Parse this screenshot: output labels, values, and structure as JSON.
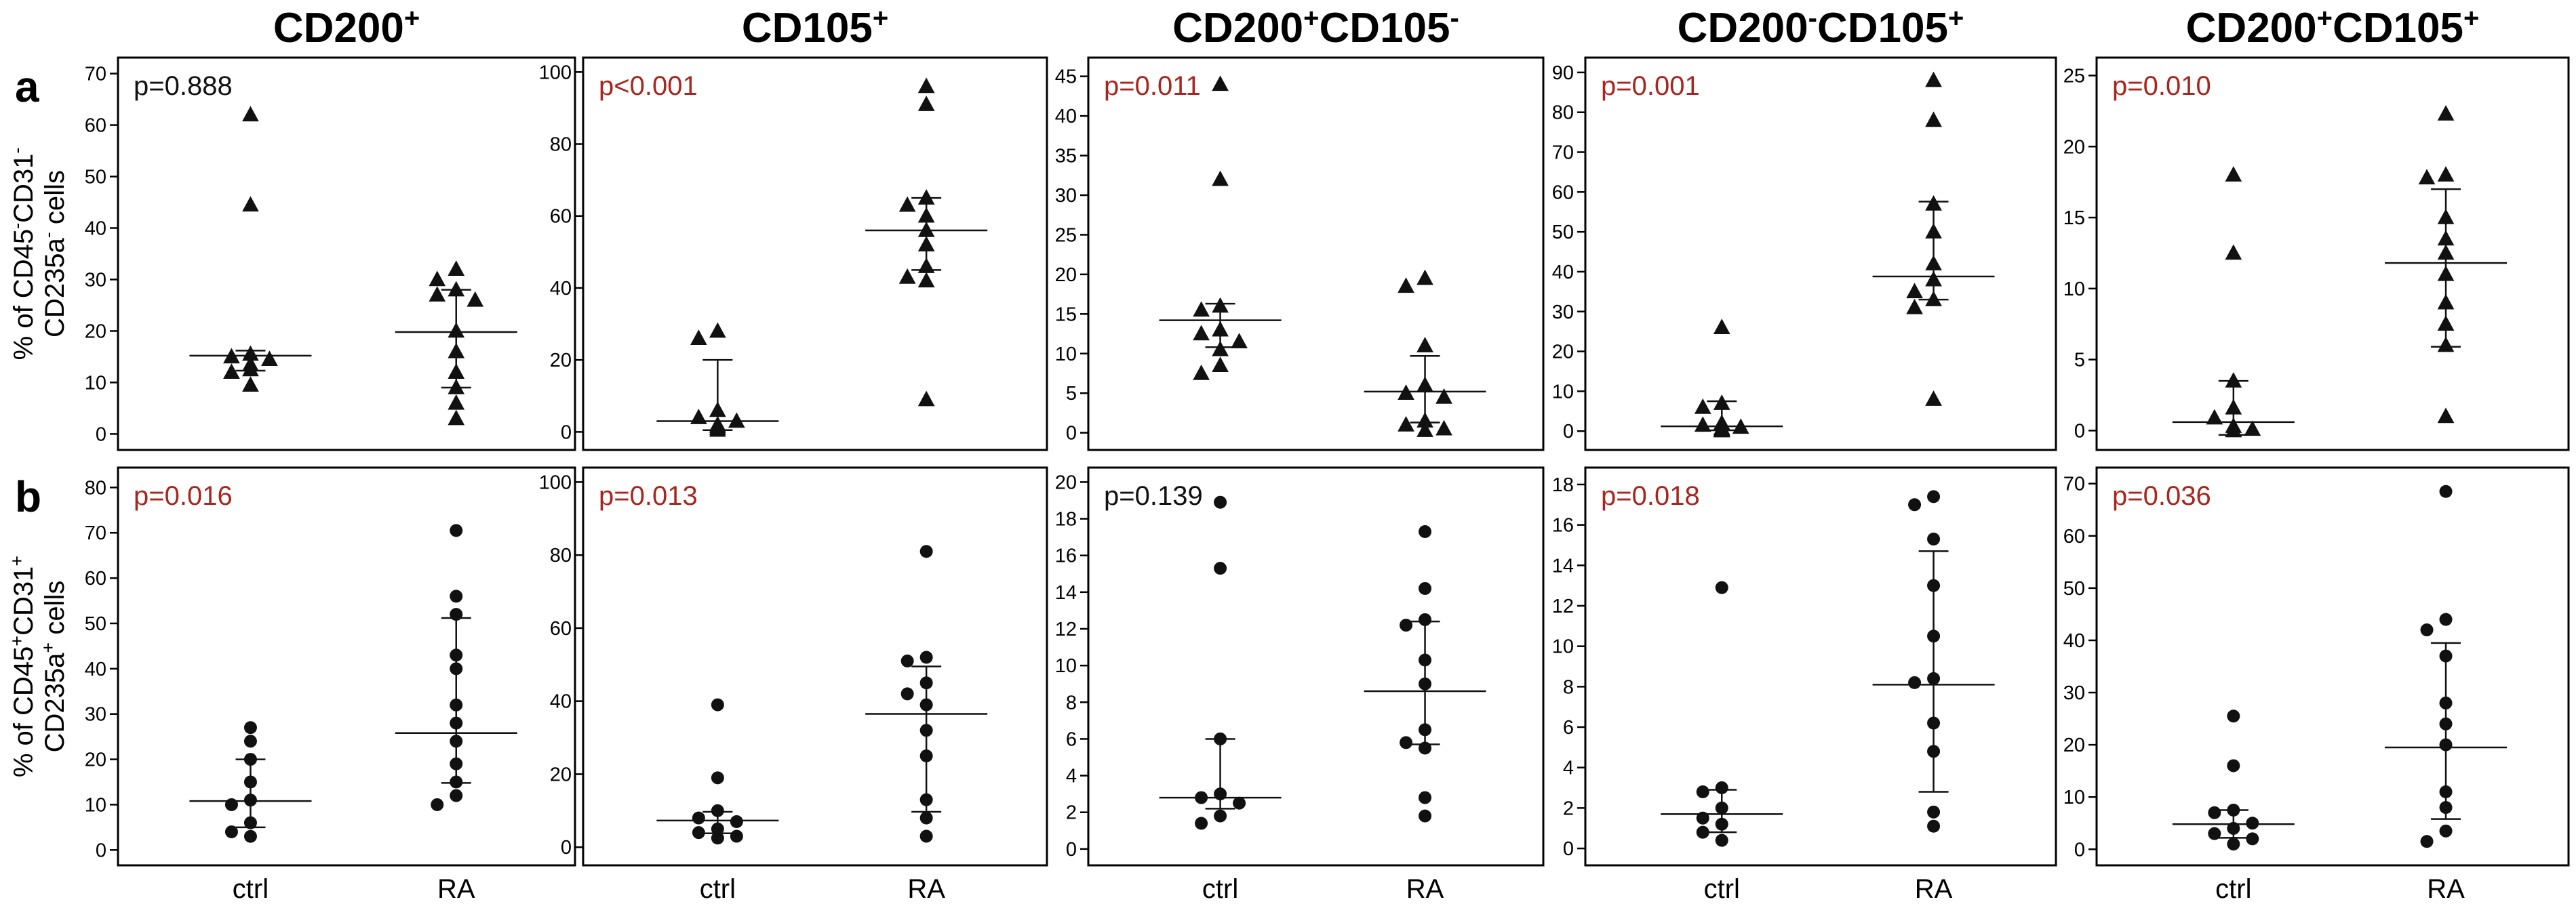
{
  "figure": {
    "column_titles": [
      [
        {
          "t": "CD200",
          "s": false
        },
        {
          "t": "+",
          "s": true
        }
      ],
      [
        {
          "t": "CD105",
          "s": false
        },
        {
          "t": "+",
          "s": true
        }
      ],
      [
        {
          "t": "CD200",
          "s": false
        },
        {
          "t": "+",
          "s": true
        },
        {
          "t": "CD105",
          "s": false
        },
        {
          "t": "-",
          "s": true
        }
      ],
      [
        {
          "t": "CD200",
          "s": false
        },
        {
          "t": "-",
          "s": true
        },
        {
          "t": "CD105",
          "s": false
        },
        {
          "t": "+",
          "s": true
        }
      ],
      [
        {
          "t": "CD200",
          "s": false
        },
        {
          "t": "+",
          "s": true
        },
        {
          "t": "CD105",
          "s": false
        },
        {
          "t": "+",
          "s": true
        }
      ]
    ],
    "rows": [
      {
        "label": "a",
        "ylabel_lines": [
          [
            {
              "t": "% of CD45",
              "s": false
            },
            {
              "t": "-",
              "s": true
            },
            {
              "t": "CD31",
              "s": false
            },
            {
              "t": "-",
              "s": true
            }
          ],
          [
            {
              "t": "CD235a",
              "s": false
            },
            {
              "t": "-",
              "s": true
            },
            {
              "t": " cells",
              "s": false
            }
          ]
        ],
        "marker": "triangle"
      },
      {
        "label": "b",
        "ylabel_lines": [
          [
            {
              "t": "% of CD45",
              "s": false
            },
            {
              "t": "+",
              "s": true
            },
            {
              "t": "CD31",
              "s": false
            },
            {
              "t": "+",
              "s": true
            }
          ],
          [
            {
              "t": "CD235a",
              "s": false
            },
            {
              "t": "+",
              "s": true
            },
            {
              "t": " cells",
              "s": false
            }
          ]
        ],
        "marker": "circle"
      }
    ],
    "x_categories": [
      "ctrl",
      "RA"
    ],
    "colors": {
      "significant": "#a8261e",
      "nonsignificant": "#111111",
      "axis": "#000000"
    }
  },
  "chart_data": [
    {
      "type": "scatter",
      "row": "a",
      "col": 0,
      "title": "CD200+",
      "p_value": "p=0.888",
      "significant": false,
      "ylim": [
        -1,
        71
      ],
      "yticks": [
        0,
        10,
        20,
        30,
        40,
        50,
        60,
        70
      ],
      "categories": [
        "ctrl",
        "RA"
      ],
      "series": [
        {
          "name": "ctrl",
          "values": [
            62,
            44.5,
            15.5,
            15,
            14.5,
            13.5,
            12.5,
            12,
            9.5
          ],
          "median": 15.2,
          "q1": 12.3,
          "q3": 16.2
        },
        {
          "name": "RA",
          "values": [
            32,
            30,
            28,
            27,
            26,
            20,
            16,
            12,
            9,
            6,
            3
          ],
          "median": 19.8,
          "q1": 9,
          "q3": 28
        }
      ]
    },
    {
      "type": "scatter",
      "row": "a",
      "col": 1,
      "title": "CD105+",
      "p_value": "p<0.001",
      "significant": true,
      "ylim": [
        -2,
        101
      ],
      "yticks": [
        0,
        20,
        40,
        60,
        80,
        100
      ],
      "categories": [
        "ctrl",
        "RA"
      ],
      "series": [
        {
          "name": "ctrl",
          "values": [
            28,
            26,
            6,
            4,
            3,
            2,
            1.5,
            1,
            0.5
          ],
          "median": 3,
          "q1": 0.5,
          "q3": 20
        },
        {
          "name": "RA",
          "values": [
            96,
            91,
            65,
            63,
            60,
            56,
            52,
            46,
            43,
            42,
            9
          ],
          "median": 56,
          "q1": 45,
          "q3": 65
        }
      ]
    },
    {
      "type": "scatter",
      "row": "a",
      "col": 2,
      "title": "CD200+CD105-",
      "p_value": "p=0.011",
      "significant": true,
      "ylim": [
        -0.8,
        46
      ],
      "yticks": [
        0,
        5,
        10,
        15,
        20,
        25,
        30,
        35,
        40,
        45
      ],
      "categories": [
        "ctrl",
        "RA"
      ],
      "series": [
        {
          "name": "ctrl",
          "values": [
            44,
            32,
            16,
            15.5,
            13,
            12.5,
            11.5,
            10.5,
            8.5,
            7.5
          ],
          "median": 14.2,
          "q1": 10.8,
          "q3": 16.3
        },
        {
          "name": "RA",
          "values": [
            19.5,
            18.5,
            11,
            6,
            5,
            4.5,
            1.5,
            1,
            0.5,
            0.3
          ],
          "median": 5.2,
          "q1": 1.3,
          "q3": 9.7
        }
      ]
    },
    {
      "type": "scatter",
      "row": "a",
      "col": 3,
      "title": "CD200-CD105+",
      "p_value": "p=0.001",
      "significant": true,
      "ylim": [
        -2,
        91
      ],
      "yticks": [
        0,
        10,
        20,
        30,
        40,
        50,
        60,
        70,
        80,
        90
      ],
      "categories": [
        "ctrl",
        "RA"
      ],
      "series": [
        {
          "name": "ctrl",
          "values": [
            26,
            7,
            6,
            2,
            1.5,
            1,
            0.7,
            0.5,
            0.3,
            0.1
          ],
          "median": 1.2,
          "q1": 0.2,
          "q3": 7.5
        },
        {
          "name": "RA",
          "values": [
            88,
            78,
            57,
            50,
            42,
            38,
            35,
            33,
            31,
            8
          ],
          "median": 38.8,
          "q1": 33,
          "q3": 57.6
        }
      ]
    },
    {
      "type": "scatter",
      "row": "a",
      "col": 4,
      "title": "CD200+CD105+",
      "p_value": "p=0.010",
      "significant": true,
      "ylim": [
        -0.6,
        25.5
      ],
      "yticks": [
        0,
        5,
        10,
        15,
        20,
        25
      ],
      "categories": [
        "ctrl",
        "RA"
      ],
      "series": [
        {
          "name": "ctrl",
          "values": [
            18,
            12.5,
            3.5,
            1.6,
            0.9,
            0.3,
            0.1,
            0,
            0,
            0
          ],
          "median": 0.6,
          "q1": -0.3,
          "q3": 3.5
        },
        {
          "name": "RA",
          "values": [
            22.3,
            18,
            17.8,
            15,
            13.5,
            12.5,
            11,
            9,
            7.5,
            6,
            1
          ],
          "median": 11.8,
          "q1": 5.9,
          "q3": 17
        }
      ]
    },
    {
      "type": "scatter",
      "row": "b",
      "col": 0,
      "title": "CD200+",
      "p_value": "p=0.016",
      "significant": true,
      "ylim": [
        -1,
        82
      ],
      "yticks": [
        0,
        10,
        20,
        30,
        40,
        50,
        60,
        70,
        80
      ],
      "categories": [
        "ctrl",
        "RA"
      ],
      "series": [
        {
          "name": "ctrl",
          "values": [
            27,
            24,
            20,
            15,
            11,
            10,
            6,
            4,
            3
          ],
          "median": 10.8,
          "q1": 5,
          "q3": 20
        },
        {
          "name": "RA",
          "values": [
            70.5,
            56,
            52,
            43,
            40,
            32,
            28,
            24,
            19,
            15,
            12,
            10
          ],
          "median": 25.8,
          "q1": 14.8,
          "q3": 51.2
        }
      ]
    },
    {
      "type": "scatter",
      "row": "b",
      "col": 1,
      "title": "CD105+",
      "p_value": "p=0.013",
      "significant": true,
      "ylim": [
        -2,
        101
      ],
      "yticks": [
        0,
        20,
        40,
        60,
        80,
        100
      ],
      "categories": [
        "ctrl",
        "RA"
      ],
      "series": [
        {
          "name": "ctrl",
          "values": [
            39,
            19,
            10,
            8,
            7,
            5,
            4,
            3,
            2.5
          ],
          "median": 7.3,
          "q1": 3.8,
          "q3": 9.7
        },
        {
          "name": "RA",
          "values": [
            81,
            52,
            51,
            45,
            42,
            39,
            32,
            25,
            13,
            8,
            3
          ],
          "median": 36.5,
          "q1": 9.7,
          "q3": 49.5
        }
      ]
    },
    {
      "type": "scatter",
      "row": "b",
      "col": 2,
      "title": "CD200+CD105-",
      "p_value": "p=0.139",
      "significant": false,
      "ylim": [
        -0.3,
        20.2
      ],
      "yticks": [
        0,
        2,
        4,
        6,
        8,
        10,
        12,
        14,
        16,
        18,
        20
      ],
      "categories": [
        "ctrl",
        "RA"
      ],
      "series": [
        {
          "name": "ctrl",
          "values": [
            18.9,
            15.3,
            6,
            3,
            2.8,
            2.5,
            1.8,
            1.4
          ],
          "median": 2.8,
          "q1": 2.2,
          "q3": 6
        },
        {
          "name": "RA",
          "values": [
            17.3,
            14.2,
            12.5,
            12.2,
            10.3,
            9,
            6.5,
            5.8,
            5.5,
            2.8,
            1.8
          ],
          "median": 8.6,
          "q1": 5.7,
          "q3": 12.4
        }
      ]
    },
    {
      "type": "scatter",
      "row": "b",
      "col": 3,
      "title": "CD200-CD105+",
      "p_value": "p=0.018",
      "significant": true,
      "ylim": [
        -0.3,
        18.3
      ],
      "yticks": [
        0,
        2,
        4,
        6,
        8,
        10,
        12,
        14,
        16,
        18
      ],
      "categories": [
        "ctrl",
        "RA"
      ],
      "series": [
        {
          "name": "ctrl",
          "values": [
            12.9,
            3,
            2.8,
            2,
            1.5,
            1.2,
            0.8,
            0.4
          ],
          "median": 1.7,
          "q1": 0.8,
          "q3": 2.9
        },
        {
          "name": "RA",
          "values": [
            17.4,
            17,
            15.3,
            13,
            10.5,
            8.4,
            8.2,
            6.2,
            4.8,
            1.8,
            1.1
          ],
          "median": 8.1,
          "q1": 2.8,
          "q3": 14.7
        }
      ]
    },
    {
      "type": "scatter",
      "row": "b",
      "col": 4,
      "title": "CD200+CD105+",
      "p_value": "p=0.036",
      "significant": true,
      "ylim": [
        -1,
        71
      ],
      "yticks": [
        0,
        10,
        20,
        30,
        40,
        50,
        60,
        70
      ],
      "categories": [
        "ctrl",
        "RA"
      ],
      "series": [
        {
          "name": "ctrl",
          "values": [
            25.5,
            16,
            7.5,
            7,
            5,
            4,
            3,
            2,
            1
          ],
          "median": 4.8,
          "q1": 2.2,
          "q3": 7.5
        },
        {
          "name": "RA",
          "values": [
            68.5,
            44,
            42,
            37,
            28,
            24,
            20,
            11,
            8,
            3.5,
            1.5
          ],
          "median": 19.5,
          "q1": 5.8,
          "q3": 39.5
        }
      ]
    }
  ]
}
